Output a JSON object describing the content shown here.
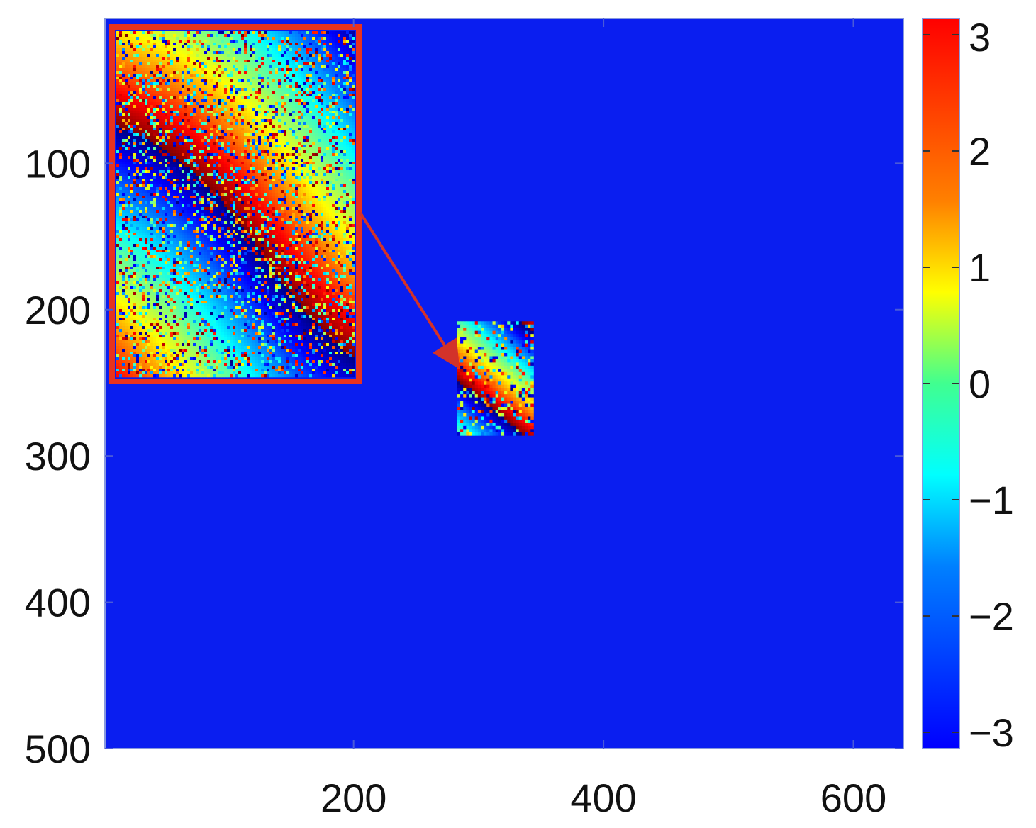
{
  "chart_data": {
    "type": "heatmap",
    "title": "",
    "xlabel": "",
    "ylabel": "",
    "xlim": [
      1,
      640
    ],
    "ylim": [
      1,
      500
    ],
    "y_reversed": true,
    "x_ticks": [
      200,
      400,
      600
    ],
    "x_tick_labels": [
      "200",
      "400",
      "600"
    ],
    "y_ticks": [
      100,
      200,
      300,
      400,
      500
    ],
    "y_tick_labels": [
      "100",
      "200",
      "300",
      "400",
      "500"
    ],
    "grid": false,
    "background_value": -3.14,
    "colormap": "jet",
    "colorbar": {
      "min": -3.14,
      "max": 3.14,
      "ticks": [
        -3,
        -2,
        -1,
        0,
        1,
        2,
        3
      ],
      "tick_labels": [
        "−3",
        "−2",
        "−1",
        "0",
        "1",
        "2",
        "3"
      ]
    },
    "data_patch": {
      "x_range": [
        283,
        344
      ],
      "y_range": [
        208,
        286
      ],
      "description_values": "wrapped phase fringes from -3.14 to 3.14"
    },
    "inset": {
      "magnifies": "data_patch",
      "border_color": "#e8321e",
      "arrow_color": "#d2322a"
    }
  }
}
